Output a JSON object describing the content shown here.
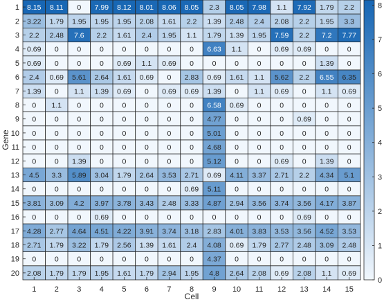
{
  "chart_data": {
    "type": "heatmap",
    "xlabel": "Cell",
    "ylabel": "Gene",
    "x_categories": [
      "1",
      "2",
      "3",
      "4",
      "5",
      "6",
      "7",
      "8",
      "9",
      "10",
      "11",
      "12",
      "13",
      "14",
      "15"
    ],
    "y_categories": [
      "1",
      "2",
      "3",
      "4",
      "5",
      "6",
      "7",
      "8",
      "9",
      "10",
      "11",
      "12",
      "13",
      "14",
      "15",
      "16",
      "17",
      "18",
      "19",
      "20"
    ],
    "values": [
      [
        8.15,
        8.11,
        0,
        7.99,
        8.12,
        8.01,
        8.06,
        8.05,
        2.3,
        8.05,
        7.98,
        1.1,
        7.92,
        1.79,
        2.2
      ],
      [
        3.22,
        1.79,
        1.95,
        1.95,
        1.95,
        2.08,
        1.61,
        2.2,
        1.39,
        2.48,
        2.4,
        2.08,
        2.2,
        1.95,
        3.3
      ],
      [
        2.2,
        2.48,
        7.6,
        2.2,
        1.61,
        2.4,
        1.95,
        1.1,
        1.79,
        1.39,
        1.95,
        7.59,
        2.2,
        7.2,
        7.77
      ],
      [
        0.69,
        0,
        0,
        0,
        0,
        0,
        0,
        0,
        6.63,
        1.1,
        0,
        0.69,
        0.69,
        0,
        0
      ],
      [
        0.69,
        0,
        0,
        0,
        0.69,
        1.1,
        0.69,
        0,
        0,
        0,
        0,
        0,
        0,
        1.39,
        0
      ],
      [
        2.4,
        0.69,
        5.61,
        2.64,
        1.61,
        0.69,
        0,
        2.83,
        0.69,
        1.61,
        1.1,
        5.62,
        2.2,
        6.55,
        6.35
      ],
      [
        1.39,
        0,
        1.1,
        1.39,
        0.69,
        0,
        0.69,
        0.69,
        1.39,
        0,
        1.1,
        0.69,
        0,
        1.1,
        0.69
      ],
      [
        0,
        1.1,
        0,
        0,
        0,
        0,
        0,
        0,
        6.58,
        0.69,
        0,
        0,
        0,
        0,
        0
      ],
      [
        0,
        0,
        0,
        0,
        0,
        0,
        0,
        0,
        4.77,
        0,
        0,
        0,
        0.69,
        0,
        0
      ],
      [
        0,
        0,
        0,
        0,
        0,
        0,
        0,
        0,
        5.01,
        0,
        0,
        0,
        0,
        0,
        0
      ],
      [
        0,
        0,
        0,
        0,
        0,
        0,
        0,
        0,
        4.68,
        0,
        0,
        0,
        0,
        0,
        0
      ],
      [
        0,
        0,
        1.39,
        0,
        0,
        0,
        0,
        0,
        5.12,
        0,
        0,
        0.69,
        0,
        1.39,
        0
      ],
      [
        4.5,
        3.3,
        5.89,
        3.04,
        1.79,
        2.64,
        3.53,
        2.71,
        0.69,
        4.11,
        3.37,
        2.71,
        2.2,
        4.34,
        5.1
      ],
      [
        0,
        0,
        0,
        0,
        0,
        0,
        0,
        0.69,
        5.11,
        0,
        0,
        0,
        0,
        0,
        0
      ],
      [
        3.81,
        3.09,
        4.2,
        3.97,
        3.78,
        3.43,
        2.48,
        3.33,
        4.87,
        2.94,
        3.56,
        3.74,
        3.56,
        4.17,
        3.87
      ],
      [
        0,
        0,
        0,
        0.69,
        0,
        0,
        0,
        0,
        0,
        0,
        0,
        0,
        0.69,
        0,
        0
      ],
      [
        4.28,
        2.77,
        4.64,
        4.51,
        4.22,
        3.91,
        3.74,
        3.18,
        2.83,
        4.01,
        3.83,
        3.53,
        3.56,
        4.52,
        3.53
      ],
      [
        2.71,
        1.79,
        3.22,
        1.79,
        2.56,
        1.39,
        1.61,
        2.4,
        4.08,
        0.69,
        1.79,
        2.77,
        2.48,
        3.09,
        2.48
      ],
      [
        0,
        0,
        0,
        0,
        0,
        0,
        0,
        0,
        4.37,
        0,
        0,
        0,
        0,
        0,
        0
      ],
      [
        2.08,
        1.79,
        1.79,
        1.95,
        1.61,
        1.79,
        2.94,
        1.95,
        4.8,
        2.64,
        2.08,
        0.69,
        2.08,
        1.1,
        0.69
      ]
    ],
    "value_range": [
      0,
      8.15
    ],
    "colorbar_ticks": [
      "0",
      "1",
      "2",
      "3",
      "4",
      "5",
      "6",
      "7",
      "8"
    ],
    "colors": {
      "low": "#f1f7fd",
      "high": "#1766b4",
      "grid": "#262626",
      "text_dark": "#262626",
      "text_light": "#ffffff"
    },
    "grid": true,
    "colorbar": "right"
  }
}
